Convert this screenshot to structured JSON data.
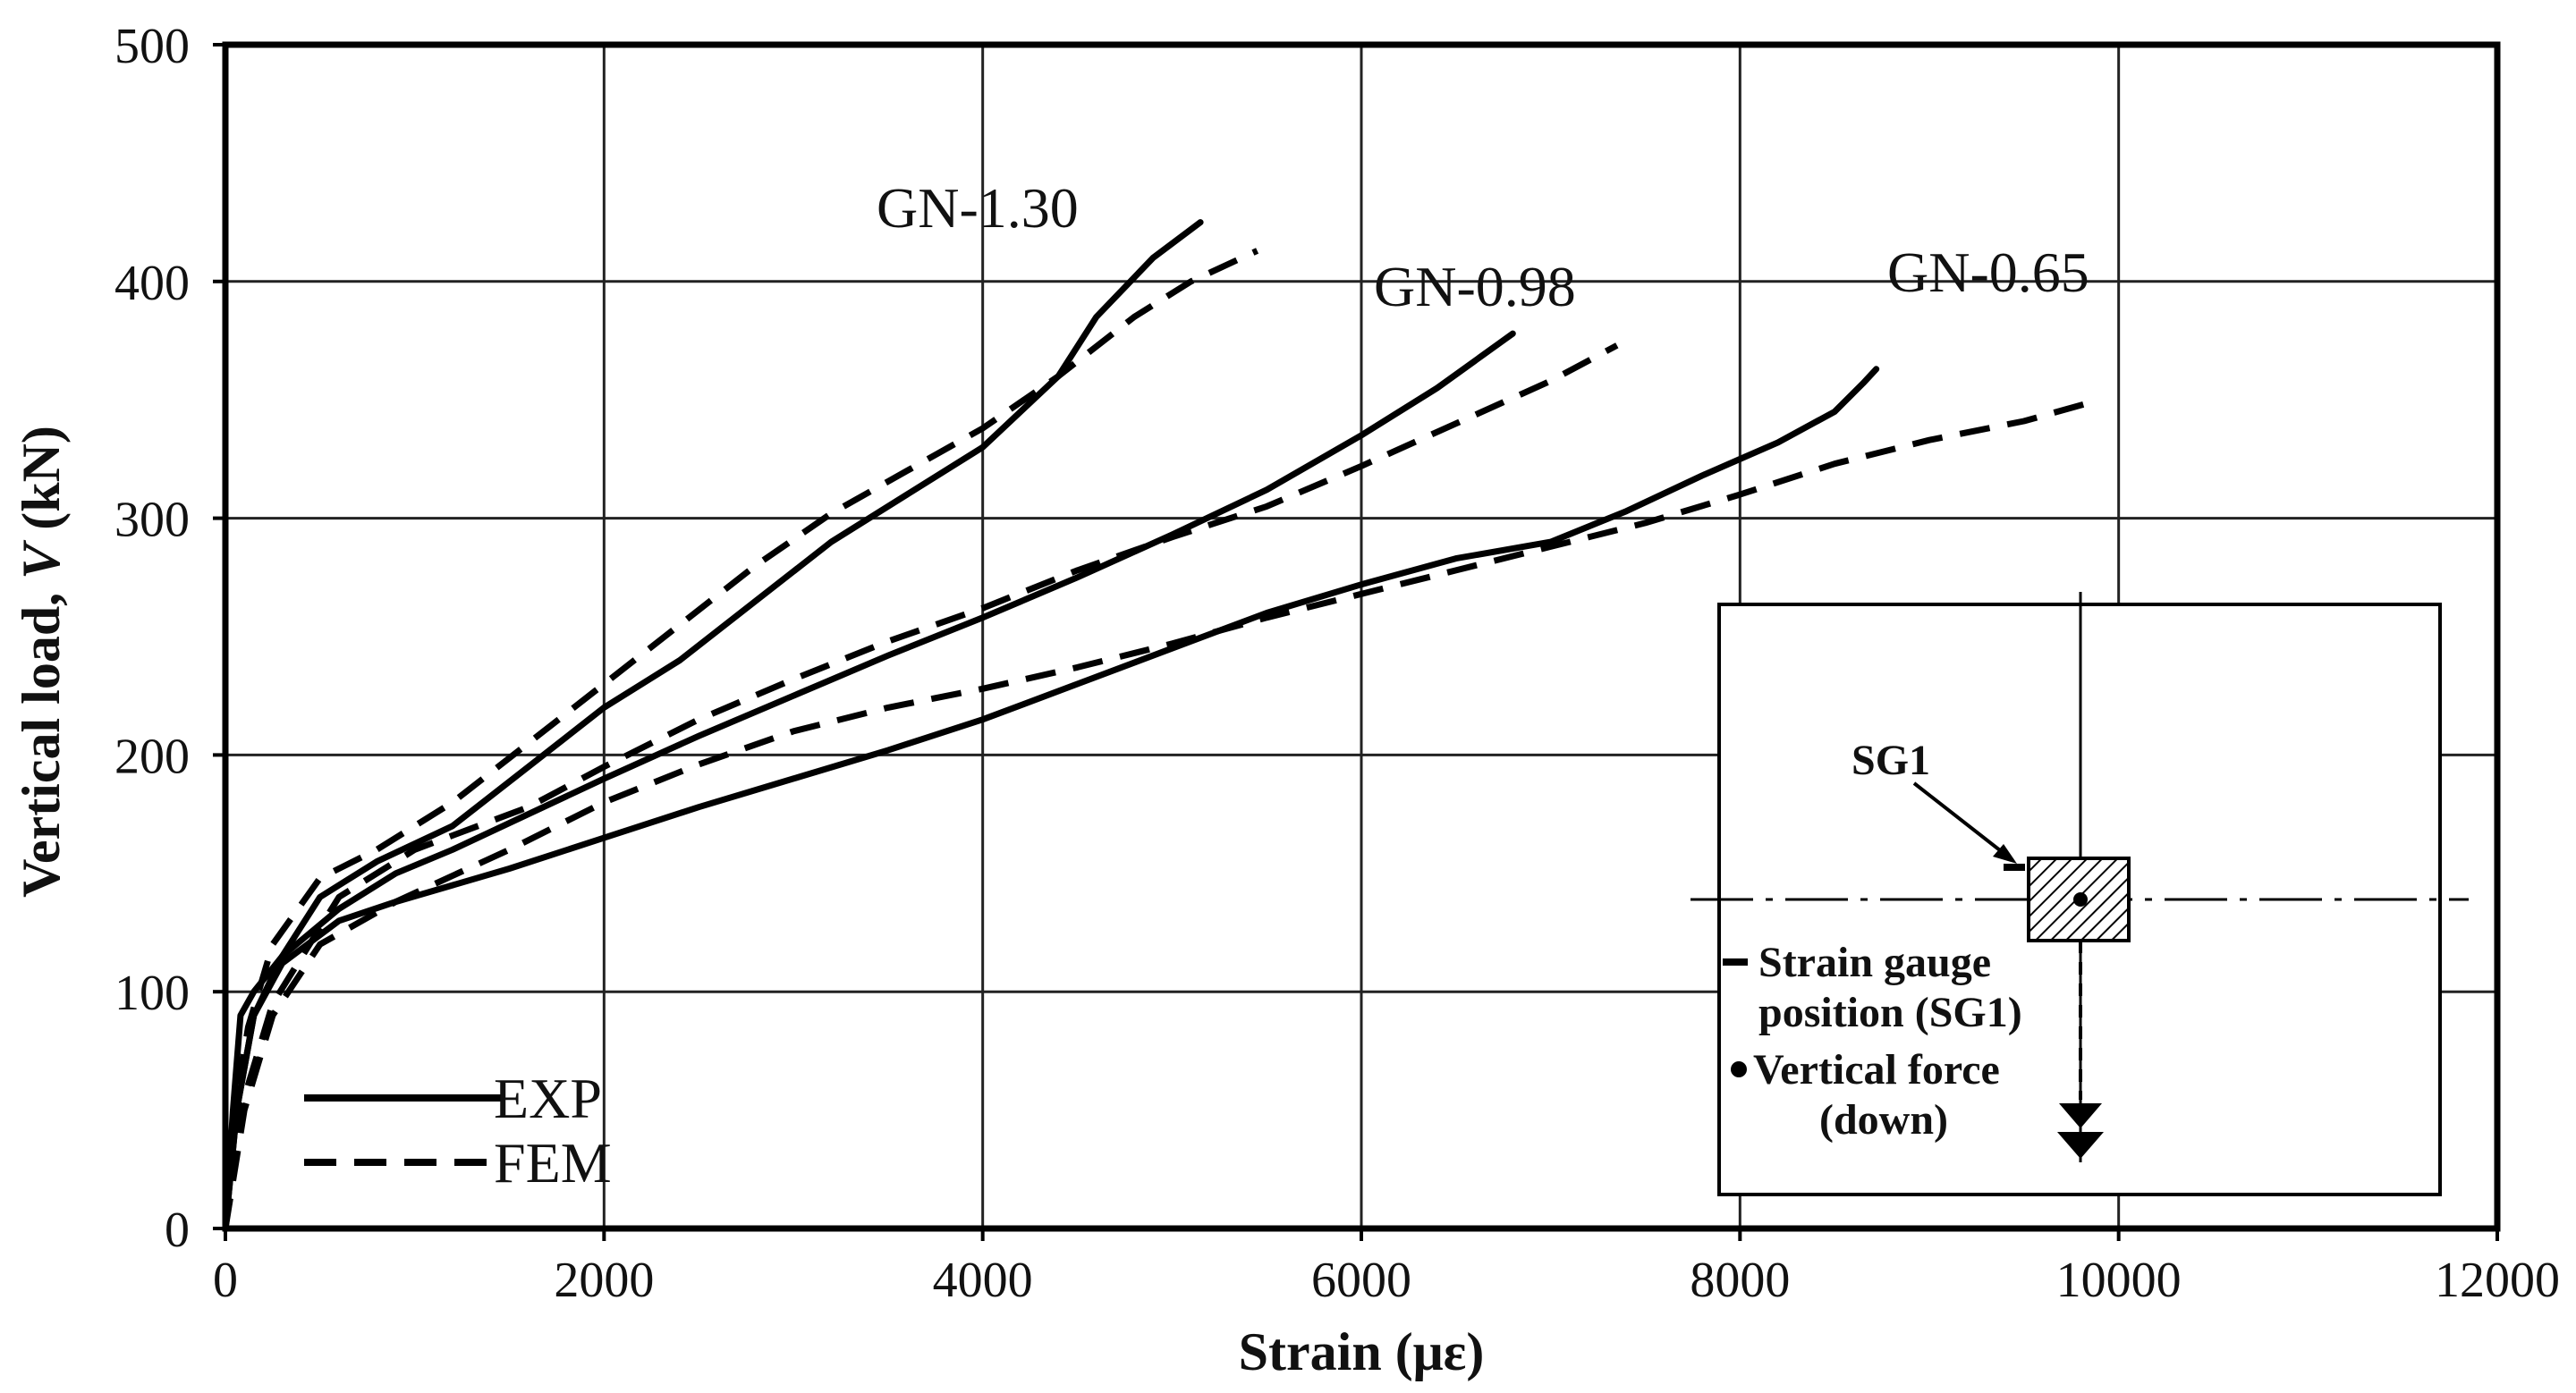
{
  "chart_data": {
    "type": "line",
    "title": "",
    "xlabel": "Strain (με)",
    "ylabel_prefix": "Vertical load, ",
    "ylabel_var": "V",
    "ylabel_suffix": " (kN)",
    "xlim": [
      0,
      12000
    ],
    "ylim": [
      0,
      500
    ],
    "xticks": [
      0,
      2000,
      4000,
      6000,
      8000,
      10000,
      12000
    ],
    "yticks": [
      0,
      100,
      200,
      300,
      400,
      500
    ],
    "grid": true,
    "legend": {
      "placement": "bottom-left",
      "entries": [
        {
          "label": "EXP",
          "style": "solid"
        },
        {
          "label": "FEM",
          "style": "dashed"
        }
      ]
    },
    "series": [
      {
        "name": "GN-1.30 EXP",
        "specimen": "GN-1.30",
        "style": "solid",
        "label": "GN-1.30",
        "points": [
          [
            0,
            0
          ],
          [
            40,
            50
          ],
          [
            80,
            90
          ],
          [
            150,
            100
          ],
          [
            300,
            115
          ],
          [
            500,
            140
          ],
          [
            800,
            155
          ],
          [
            1200,
            170
          ],
          [
            1600,
            195
          ],
          [
            2000,
            220
          ],
          [
            2400,
            240
          ],
          [
            2800,
            265
          ],
          [
            3200,
            290
          ],
          [
            3600,
            310
          ],
          [
            4000,
            330
          ],
          [
            4200,
            345
          ],
          [
            4400,
            360
          ],
          [
            4600,
            385
          ],
          [
            4900,
            410
          ],
          [
            5150,
            425
          ]
        ]
      },
      {
        "name": "GN-1.30 FEM",
        "specimen": "GN-1.30",
        "style": "dashed",
        "points": [
          [
            0,
            0
          ],
          [
            50,
            50
          ],
          [
            120,
            85
          ],
          [
            250,
            120
          ],
          [
            500,
            148
          ],
          [
            800,
            160
          ],
          [
            1200,
            180
          ],
          [
            1600,
            205
          ],
          [
            2000,
            230
          ],
          [
            2400,
            255
          ],
          [
            2800,
            280
          ],
          [
            3200,
            302
          ],
          [
            3600,
            320
          ],
          [
            4000,
            338
          ],
          [
            4400,
            360
          ],
          [
            4800,
            385
          ],
          [
            5100,
            400
          ],
          [
            5450,
            413
          ]
        ]
      },
      {
        "name": "GN-0.98 EXP",
        "specimen": "GN-0.98",
        "style": "solid",
        "label": "GN-0.98",
        "points": [
          [
            0,
            0
          ],
          [
            60,
            50
          ],
          [
            150,
            90
          ],
          [
            300,
            115
          ],
          [
            600,
            135
          ],
          [
            900,
            150
          ],
          [
            1200,
            160
          ],
          [
            1600,
            175
          ],
          [
            2000,
            190
          ],
          [
            2500,
            208
          ],
          [
            3000,
            225
          ],
          [
            3500,
            242
          ],
          [
            4000,
            258
          ],
          [
            4500,
            275
          ],
          [
            5000,
            293
          ],
          [
            5500,
            312
          ],
          [
            6000,
            335
          ],
          [
            6400,
            355
          ],
          [
            6800,
            378
          ]
        ]
      },
      {
        "name": "GN-0.98 FEM",
        "specimen": "GN-0.98",
        "style": "dashed",
        "points": [
          [
            0,
            0
          ],
          [
            80,
            50
          ],
          [
            250,
            95
          ],
          [
            600,
            140
          ],
          [
            1000,
            160
          ],
          [
            1600,
            178
          ],
          [
            2000,
            195
          ],
          [
            2500,
            215
          ],
          [
            3000,
            232
          ],
          [
            3500,
            248
          ],
          [
            4000,
            262
          ],
          [
            4500,
            278
          ],
          [
            5000,
            292
          ],
          [
            5500,
            305
          ],
          [
            6000,
            322
          ],
          [
            6500,
            340
          ],
          [
            7000,
            358
          ],
          [
            7350,
            373
          ]
        ]
      },
      {
        "name": "GN-0.65 EXP",
        "specimen": "GN-0.65",
        "style": "solid",
        "label": "GN-0.65",
        "points": [
          [
            0,
            0
          ],
          [
            60,
            50
          ],
          [
            150,
            90
          ],
          [
            300,
            112
          ],
          [
            600,
            130
          ],
          [
            900,
            138
          ],
          [
            1500,
            152
          ],
          [
            2000,
            165
          ],
          [
            2500,
            178
          ],
          [
            3000,
            190
          ],
          [
            3500,
            202
          ],
          [
            4000,
            215
          ],
          [
            4500,
            230
          ],
          [
            5000,
            245
          ],
          [
            5500,
            260
          ],
          [
            6000,
            272
          ],
          [
            6500,
            283
          ],
          [
            7000,
            290
          ],
          [
            7400,
            303
          ],
          [
            7800,
            318
          ],
          [
            8200,
            332
          ],
          [
            8500,
            345
          ],
          [
            8650,
            357
          ],
          [
            8720,
            363
          ]
        ]
      },
      {
        "name": "GN-0.65 FEM",
        "specimen": "GN-0.65",
        "style": "dashed",
        "points": [
          [
            0,
            0
          ],
          [
            100,
            50
          ],
          [
            250,
            90
          ],
          [
            500,
            120
          ],
          [
            900,
            138
          ],
          [
            1500,
            160
          ],
          [
            2000,
            180
          ],
          [
            2500,
            196
          ],
          [
            3000,
            210
          ],
          [
            3500,
            220
          ],
          [
            4000,
            228
          ],
          [
            4500,
            237
          ],
          [
            5000,
            247
          ],
          [
            5500,
            258
          ],
          [
            6000,
            268
          ],
          [
            6500,
            278
          ],
          [
            7000,
            288
          ],
          [
            7500,
            298
          ],
          [
            8000,
            310
          ],
          [
            8500,
            323
          ],
          [
            9000,
            333
          ],
          [
            9500,
            341
          ],
          [
            9900,
            350
          ]
        ]
      }
    ]
  },
  "inset": {
    "sg1_label": "SG1",
    "gauge_line1": "Strain gauge",
    "gauge_line2": "position (SG1)",
    "force_line1": "Vertical force",
    "force_line2": "(down)"
  }
}
